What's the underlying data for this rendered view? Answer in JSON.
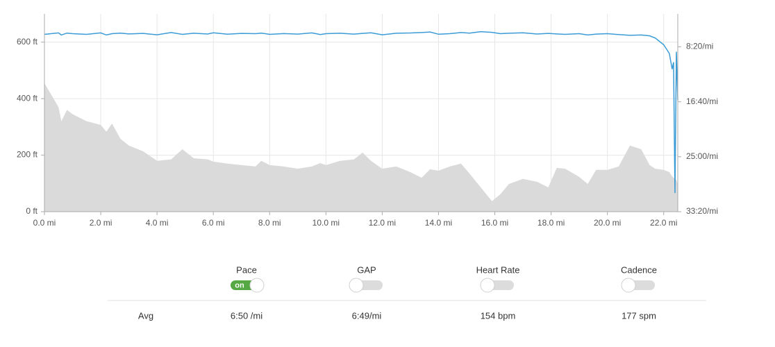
{
  "chart_data": {
    "type": "area",
    "x": [
      0,
      0.5,
      0.6,
      0.8,
      1,
      1.5,
      2,
      2.2,
      2.4,
      2.7,
      3,
      3.5,
      4,
      4.5,
      4.9,
      5.3,
      5.8,
      6,
      6.5,
      7,
      7.5,
      7.7,
      8,
      8.5,
      9,
      9.5,
      9.8,
      10,
      10.5,
      11,
      11.3,
      11.6,
      12,
      12.5,
      13,
      13.4,
      13.7,
      14,
      14.4,
      14.8,
      15.1,
      15.5,
      15.9,
      16.2,
      16.5,
      17,
      17.5,
      17.9,
      18.2,
      18.5,
      19,
      19.3,
      19.6,
      20,
      20.4,
      20.8,
      21.2,
      21.5,
      21.7,
      22,
      22.2,
      22.3,
      22.35,
      22.4,
      22.45,
      22.5
    ],
    "series": [
      {
        "type": "area",
        "color": "#dadada",
        "axis": "y",
        "values": [
          455,
          370,
          320,
          360,
          345,
          320,
          307,
          283,
          312,
          258,
          234,
          214,
          180,
          185,
          221,
          189,
          185,
          177,
          170,
          165,
          160,
          180,
          165,
          160,
          152,
          160,
          172,
          165,
          180,
          185,
          209,
          180,
          152,
          160,
          140,
          120,
          150,
          145,
          160,
          170,
          135,
          86,
          37,
          62,
          98,
          116,
          106,
          86,
          155,
          152,
          123,
          98,
          148,
          148,
          160,
          234,
          221,
          165,
          152,
          148,
          140,
          125,
          120,
          118,
          112,
          98
        ]
      },
      {
        "type": "line",
        "color": "#3a9bd6",
        "axis": "y2",
        "values": [
          386,
          373,
          392,
          375,
          380,
          386,
          373,
          392,
          380,
          375,
          382,
          378,
          390,
          370,
          386,
          376,
          383,
          372,
          385,
          378,
          380,
          375,
          386,
          379,
          384,
          373,
          388,
          380,
          376,
          384,
          378,
          372,
          390,
          376,
          374,
          370,
          365,
          385,
          380,
          370,
          375,
          362,
          368,
          380,
          376,
          372,
          383,
          378,
          382,
          386,
          380,
          392,
          384,
          380,
          388,
          395,
          392,
          400,
          420,
          481,
          560,
          703,
          640,
          1830,
          544,
          987
        ]
      }
    ],
    "xlim": [
      0,
      22.5
    ],
    "xticks": [
      {
        "value": 0,
        "label": "0.0 mi"
      },
      {
        "value": 2,
        "label": "2.0 mi"
      },
      {
        "value": 4,
        "label": "4.0 mi"
      },
      {
        "value": 6,
        "label": "6.0 mi"
      },
      {
        "value": 8,
        "label": "8.0 mi"
      },
      {
        "value": 10,
        "label": "10.0 mi"
      },
      {
        "value": 12,
        "label": "12.0 mi"
      },
      {
        "value": 14,
        "label": "14.0 mi"
      },
      {
        "value": 16,
        "label": "16.0 mi"
      },
      {
        "value": 18,
        "label": "18.0 mi"
      },
      {
        "value": 20,
        "label": "20.0 mi"
      },
      {
        "value": 22,
        "label": "22.0 mi"
      }
    ],
    "ylim": [
      0,
      700
    ],
    "yticks": [
      {
        "value": 0,
        "label": "0 ft"
      },
      {
        "value": 200,
        "label": "200 ft"
      },
      {
        "value": 400,
        "label": "400 ft"
      },
      {
        "value": 600,
        "label": "600 ft"
      }
    ],
    "y2lim": [
      2000,
      200
    ],
    "y2ticks": [
      {
        "value": 500,
        "label": "8:20/mi"
      },
      {
        "value": 1000,
        "label": "16:40/mi"
      },
      {
        "value": 1500,
        "label": "25:00/mi"
      },
      {
        "value": 2000,
        "label": "33:20/mi"
      }
    ],
    "grid": true
  },
  "controls": {
    "avg_label": "Avg",
    "items": [
      {
        "label": "Pace",
        "on": true,
        "toggle_text": "on",
        "avg": "6:50 /mi"
      },
      {
        "label": "GAP",
        "on": false,
        "avg": "6:49/mi"
      },
      {
        "label": "Heart Rate",
        "on": false,
        "avg": "154 bpm"
      },
      {
        "label": "Cadence",
        "on": false,
        "avg": "177 spm"
      }
    ]
  }
}
